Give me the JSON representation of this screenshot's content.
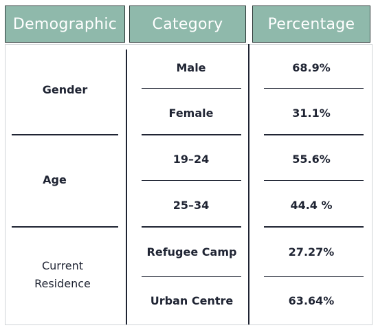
{
  "headers": {
    "demographic": "Demographic",
    "category": "Category",
    "percentage": "Percentage"
  },
  "groups": [
    {
      "label": "Gender",
      "rows": [
        {
          "category": "Male",
          "percentage": "68.9%"
        },
        {
          "category": "Female",
          "percentage": "31.1%"
        }
      ]
    },
    {
      "label": "Age",
      "rows": [
        {
          "category": "19–24",
          "percentage": "55.6%"
        },
        {
          "category": "25–34",
          "percentage": "44.4 %"
        }
      ]
    },
    {
      "label_line1": "Current",
      "label_line2": "Residence",
      "rows": [
        {
          "category": "Refugee Camp",
          "percentage": "27.27%"
        },
        {
          "category": "Urban Centre",
          "percentage": "63.64%"
        }
      ]
    }
  ],
  "colors": {
    "header_bg": "#8fb9ab",
    "header_text": "#ffffff",
    "body_text": "#1f2433",
    "rule": "#1f2433"
  }
}
